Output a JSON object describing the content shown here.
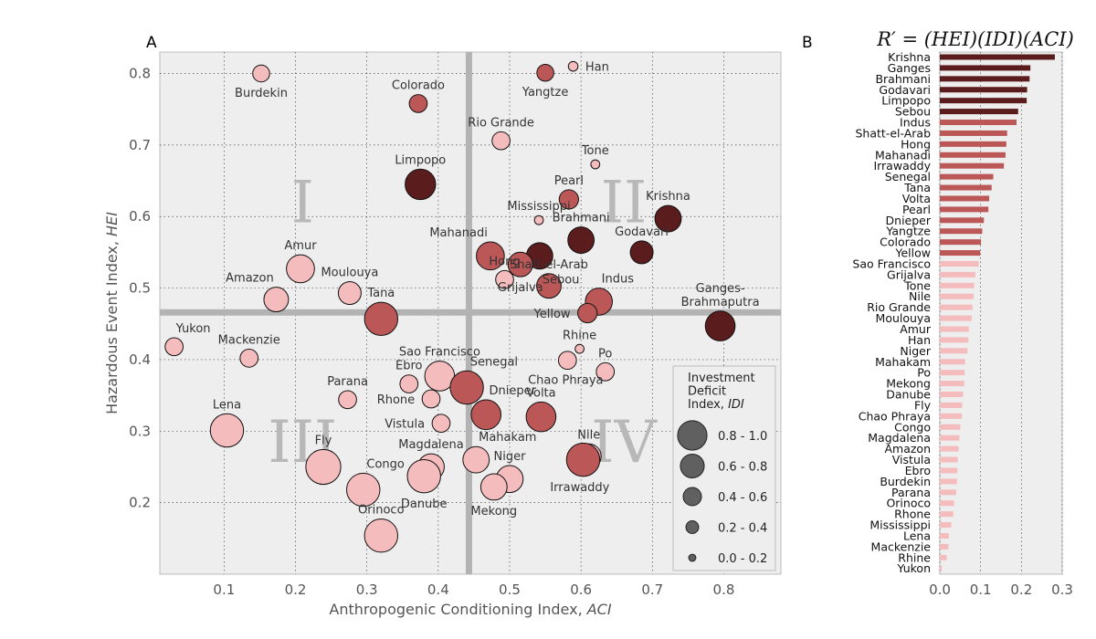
{
  "chart_data": [
    {
      "type": "scatter",
      "panel_label": "A",
      "xlabel": "Anthropogenic Conditioning Index, ",
      "xlabel_italic": "ACI",
      "ylabel": "Hazardous Event Index, ",
      "ylabel_italic": "HEI",
      "xlim": [
        0.01,
        0.88
      ],
      "ylim": [
        0.1,
        0.83
      ],
      "xticks": [
        "0.1",
        "0.2",
        "0.3",
        "0.4",
        "0.5",
        "0.6",
        "0.7",
        "0.8"
      ],
      "yticks": [
        "0.2",
        "0.3",
        "0.4",
        "0.5",
        "0.6",
        "0.7",
        "0.8"
      ],
      "grid": true,
      "divider_x": 0.443,
      "divider_y": 0.466,
      "quadrants": [
        {
          "label": "I",
          "x": 0.21,
          "y": 0.62
        },
        {
          "label": "II",
          "x": 0.66,
          "y": 0.62
        },
        {
          "label": "III",
          "x": 0.21,
          "y": 0.285
        },
        {
          "label": "IV",
          "x": 0.66,
          "y": 0.285
        }
      ],
      "colors": {
        "low": "#f4bcbc",
        "mid": "#bb5757",
        "high": "#5a1c1c",
        "background": "#eeeeee",
        "divider": "#b3b3b3"
      },
      "legend": {
        "title_lines": [
          "Investment",
          "Deficit",
          "Index, "
        ],
        "title_italic": "IDI",
        "placement": "lower-right",
        "entries": [
          {
            "label": "0.8 - 1.0",
            "idi": 0.9
          },
          {
            "label": "0.6 - 0.8",
            "idi": 0.7
          },
          {
            "label": "0.4 - 0.6",
            "idi": 0.5
          },
          {
            "label": "0.2 - 0.4",
            "idi": 0.3
          },
          {
            "label": "0.0 - 0.2",
            "idi": 0.1
          }
        ]
      },
      "points": [
        {
          "name": "Burdekin",
          "aci": 0.152,
          "hei": 0.8,
          "idi": 0.33,
          "tier": "low",
          "lx": 0,
          "ly": 1,
          "anchor": "middle"
        },
        {
          "name": "Colorado",
          "aci": 0.372,
          "hei": 0.758,
          "idi": 0.36,
          "tier": "mid",
          "lx": 0,
          "ly": -1,
          "anchor": "middle"
        },
        {
          "name": "Yangtze",
          "aci": 0.55,
          "hei": 0.801,
          "idi": 0.33,
          "tier": "mid",
          "lx": 0,
          "ly": 1,
          "anchor": "middle"
        },
        {
          "name": "Han",
          "aci": 0.589,
          "hei": 0.81,
          "idi": 0.12,
          "tier": "low",
          "lx": 1,
          "ly": 0,
          "anchor": "start"
        },
        {
          "name": "Rio Grande",
          "aci": 0.488,
          "hei": 0.706,
          "idi": 0.36,
          "tier": "low",
          "lx": 0,
          "ly": -1,
          "anchor": "middle"
        },
        {
          "name": "Tone",
          "aci": 0.62,
          "hei": 0.673,
          "idi": 0.1,
          "tier": "low",
          "lx": 0,
          "ly": -1,
          "anchor": "middle"
        },
        {
          "name": "Limpopo",
          "aci": 0.375,
          "hei": 0.645,
          "idi": 0.72,
          "tier": "high",
          "lx": 0,
          "ly": -1,
          "anchor": "middle"
        },
        {
          "name": "Pearl",
          "aci": 0.583,
          "hei": 0.624,
          "idi": 0.4,
          "tier": "mid",
          "lx": 0,
          "ly": -1,
          "anchor": "middle"
        },
        {
          "name": "Mississippi",
          "aci": 0.541,
          "hei": 0.595,
          "idi": 0.1,
          "tier": "low",
          "lx": 0,
          "ly": -1,
          "anchor": "middle"
        },
        {
          "name": "Krishna",
          "aci": 0.722,
          "hei": 0.597,
          "idi": 0.6,
          "tier": "high",
          "lx": 0,
          "ly": -1,
          "anchor": "middle"
        },
        {
          "name": "Brahmani",
          "aci": 0.6,
          "hei": 0.567,
          "idi": 0.6,
          "tier": "high",
          "lx": 0,
          "ly": -1,
          "anchor": "middle"
        },
        {
          "name": "Godavari",
          "aci": 0.685,
          "hei": 0.55,
          "idi": 0.5,
          "tier": "high",
          "lx": 0,
          "ly": -1,
          "anchor": "middle"
        },
        {
          "name": "Mahanadi",
          "aci": 0.473,
          "hei": 0.545,
          "idi": 0.65,
          "tier": "mid",
          "lx": -1,
          "ly": -1,
          "anchor": "end"
        },
        {
          "name": "Hong",
          "aci": 0.493,
          "hei": 0.512,
          "idi": 0.36,
          "tier": "low",
          "lx": 0,
          "ly": -1,
          "anchor": "middle"
        },
        {
          "name": "Sebou",
          "aci": 0.542,
          "hei": 0.545,
          "idi": 0.6,
          "tier": "high",
          "lx": 1,
          "ly": 1,
          "anchor": "start"
        },
        {
          "name": "Shatt-el-Arab",
          "aci": 0.555,
          "hei": 0.503,
          "idi": 0.55,
          "tier": "mid",
          "lx": 0,
          "ly": -1,
          "anchor": "middle"
        },
        {
          "name": "Indus",
          "aci": 0.625,
          "hei": 0.481,
          "idi": 0.62,
          "tier": "mid",
          "lx": 1,
          "ly": -1,
          "anchor": "start"
        },
        {
          "name": "Yellow",
          "aci": 0.609,
          "hei": 0.465,
          "idi": 0.4,
          "tier": "mid",
          "lx": -1,
          "ly": 0,
          "anchor": "end"
        },
        {
          "name": "Ganges-Brahmaputra",
          "aci": 0.795,
          "hei": 0.447,
          "idi": 0.7,
          "tier": "high",
          "lx": 0,
          "ly": -1,
          "anchor": "middle"
        },
        {
          "name": "Grijalva",
          "aci": 0.515,
          "hei": 0.533,
          "idi": 0.55,
          "tier": "mid",
          "lx": 0,
          "ly": 1,
          "anchor": "middle"
        },
        {
          "name": "Amur",
          "aci": 0.207,
          "hei": 0.527,
          "idi": 0.65,
          "tier": "low",
          "lx": 0,
          "ly": -1,
          "anchor": "middle"
        },
        {
          "name": "Moulouya",
          "aci": 0.276,
          "hei": 0.493,
          "idi": 0.5,
          "tier": "low",
          "lx": 0,
          "ly": -1,
          "anchor": "middle"
        },
        {
          "name": "Amazon",
          "aci": 0.173,
          "hei": 0.484,
          "idi": 0.55,
          "tier": "low",
          "lx": -1,
          "ly": -1,
          "anchor": "end"
        },
        {
          "name": "Tana",
          "aci": 0.32,
          "hei": 0.457,
          "idi": 0.8,
          "tier": "mid",
          "lx": 0,
          "ly": -1,
          "anchor": "middle"
        },
        {
          "name": "Yukon",
          "aci": 0.03,
          "hei": 0.418,
          "idi": 0.36,
          "tier": "low",
          "lx": 1,
          "ly": -1,
          "anchor": "start"
        },
        {
          "name": "Mackenzie",
          "aci": 0.135,
          "hei": 0.402,
          "idi": 0.36,
          "tier": "low",
          "lx": 0,
          "ly": -1,
          "anchor": "middle"
        },
        {
          "name": "Sao Francisco",
          "aci": 0.402,
          "hei": 0.377,
          "idi": 0.7,
          "tier": "low",
          "lx": 0,
          "ly": -1,
          "anchor": "middle"
        },
        {
          "name": "Rhine",
          "aci": 0.598,
          "hei": 0.415,
          "idi": 0.1,
          "tier": "low",
          "lx": 0,
          "ly": -1,
          "anchor": "middle"
        },
        {
          "name": "Po",
          "aci": 0.634,
          "hei": 0.383,
          "idi": 0.36,
          "tier": "low",
          "lx": 0,
          "ly": -1,
          "anchor": "middle"
        },
        {
          "name": "Chao Phraya",
          "aci": 0.581,
          "hei": 0.399,
          "idi": 0.36,
          "tier": "low",
          "lx": -1,
          "ly": 1,
          "anchor": "middle"
        },
        {
          "name": "Ebro",
          "aci": 0.359,
          "hei": 0.366,
          "idi": 0.36,
          "tier": "low",
          "lx": 0,
          "ly": -1,
          "anchor": "middle"
        },
        {
          "name": "Senegal",
          "aci": 0.44,
          "hei": 0.361,
          "idi": 0.8,
          "tier": "mid",
          "lx": 1,
          "ly": -1,
          "anchor": "start"
        },
        {
          "name": "Parana",
          "aci": 0.273,
          "hei": 0.344,
          "idi": 0.36,
          "tier": "low",
          "lx": 0,
          "ly": -1,
          "anchor": "middle"
        },
        {
          "name": "Rhone",
          "aci": 0.39,
          "hei": 0.345,
          "idi": 0.36,
          "tier": "low",
          "lx": -1,
          "ly": 0,
          "anchor": "end"
        },
        {
          "name": "Dnieper",
          "aci": 0.467,
          "hei": 0.323,
          "idi": 0.7,
          "tier": "mid",
          "lx": 1,
          "ly": -1,
          "anchor": "start"
        },
        {
          "name": "Volta",
          "aci": 0.544,
          "hei": 0.32,
          "idi": 0.7,
          "tier": "mid",
          "lx": 0,
          "ly": -1,
          "anchor": "middle"
        },
        {
          "name": "Vistula",
          "aci": 0.404,
          "hei": 0.311,
          "idi": 0.36,
          "tier": "low",
          "lx": -1,
          "ly": 0,
          "anchor": "end"
        },
        {
          "name": "Lena",
          "aci": 0.104,
          "hei": 0.301,
          "idi": 0.8,
          "tier": "low",
          "lx": 0,
          "ly": -1,
          "anchor": "middle"
        },
        {
          "name": "Nile",
          "aci": 0.611,
          "hei": 0.265,
          "idi": 0.55,
          "tier": "low",
          "lx": 0,
          "ly": -1,
          "anchor": "middle"
        },
        {
          "name": "Irrawaddy",
          "aci": 0.603,
          "hei": 0.26,
          "idi": 0.8,
          "tier": "mid",
          "lx": -1,
          "ly": 1,
          "anchor": "middle"
        },
        {
          "name": "Fly",
          "aci": 0.239,
          "hei": 0.25,
          "idi": 0.85,
          "tier": "low",
          "lx": 0,
          "ly": -1,
          "anchor": "middle"
        },
        {
          "name": "Mahakam",
          "aci": 0.453,
          "hei": 0.26,
          "idi": 0.6,
          "tier": "low",
          "lx": 1,
          "ly": -1,
          "anchor": "start"
        },
        {
          "name": "Magdalena",
          "aci": 0.39,
          "hei": 0.25,
          "idi": 0.6,
          "tier": "low",
          "lx": 0,
          "ly": -1,
          "anchor": "middle"
        },
        {
          "name": "Niger",
          "aci": 0.5,
          "hei": 0.233,
          "idi": 0.62,
          "tier": "low",
          "lx": 0,
          "ly": -1,
          "anchor": "middle"
        },
        {
          "name": "Danube",
          "aci": 0.38,
          "hei": 0.237,
          "idi": 0.8,
          "tier": "low",
          "lx": 0,
          "ly": 1,
          "anchor": "middle"
        },
        {
          "name": "Mekong",
          "aci": 0.478,
          "hei": 0.222,
          "idi": 0.6,
          "tier": "low",
          "lx": 0,
          "ly": 1,
          "anchor": "middle"
        },
        {
          "name": "Congo",
          "aci": 0.295,
          "hei": 0.218,
          "idi": 0.8,
          "tier": "low",
          "lx": 1,
          "ly": -1,
          "anchor": "start"
        },
        {
          "name": "Orinoco",
          "aci": 0.32,
          "hei": 0.154,
          "idi": 0.8,
          "tier": "low",
          "lx": 0,
          "ly": -1,
          "anchor": "middle"
        }
      ]
    },
    {
      "type": "bar",
      "orientation": "horizontal",
      "panel_label": "B",
      "title": "R′ = (HEI)(IDI)(ACI)",
      "xlim": [
        0,
        0.3
      ],
      "xticks": [
        "0.0",
        "0.1",
        "0.2",
        "0.3"
      ],
      "categories": [
        "Krishna",
        "Ganges",
        "Brahmani",
        "Godavari",
        "Limpopo",
        "Sebou",
        "Indus",
        "Shatt-el-Arab",
        "Hong",
        "Mahanadi",
        "Irrawaddy",
        "Senegal",
        "Tana",
        "Volta",
        "Pearl",
        "Dnieper",
        "Yangtze",
        "Colorado",
        "Yellow",
        "Sao Francisco",
        "Grijalva",
        "Tone",
        "Nile",
        "Rio Grande",
        "Moulouya",
        "Amur",
        "Han",
        "Niger",
        "Mahakam",
        "Po",
        "Mekong",
        "Danube",
        "Fly",
        "Chao Phraya",
        "Congo",
        "Magdalena",
        "Amazon",
        "Vistula",
        "Ebro",
        "Burdekin",
        "Parana",
        "Orinoco",
        "Rhone",
        "Mississippi",
        "Lena",
        "Mackenzie",
        "Rhine",
        "Yukon"
      ],
      "values": [
        0.282,
        0.222,
        0.22,
        0.214,
        0.213,
        0.192,
        0.188,
        0.165,
        0.163,
        0.161,
        0.157,
        0.131,
        0.127,
        0.121,
        0.119,
        0.108,
        0.104,
        0.101,
        0.099,
        0.095,
        0.087,
        0.084,
        0.083,
        0.08,
        0.078,
        0.071,
        0.07,
        0.068,
        0.062,
        0.061,
        0.06,
        0.057,
        0.055,
        0.054,
        0.05,
        0.048,
        0.046,
        0.044,
        0.043,
        0.042,
        0.04,
        0.035,
        0.033,
        0.028,
        0.022,
        0.021,
        0.017,
        0.005
      ],
      "tiers": [
        "high",
        "high",
        "high",
        "high",
        "high",
        "high",
        "mid",
        "mid",
        "mid",
        "mid",
        "mid",
        "mid",
        "mid",
        "mid",
        "mid",
        "mid",
        "mid",
        "mid",
        "mid",
        "low",
        "low",
        "low",
        "low",
        "low",
        "low",
        "low",
        "low",
        "low",
        "low",
        "low",
        "low",
        "low",
        "low",
        "low",
        "low",
        "low",
        "low",
        "low",
        "low",
        "low",
        "low",
        "low",
        "low",
        "low",
        "low",
        "low",
        "low",
        "low"
      ]
    }
  ]
}
